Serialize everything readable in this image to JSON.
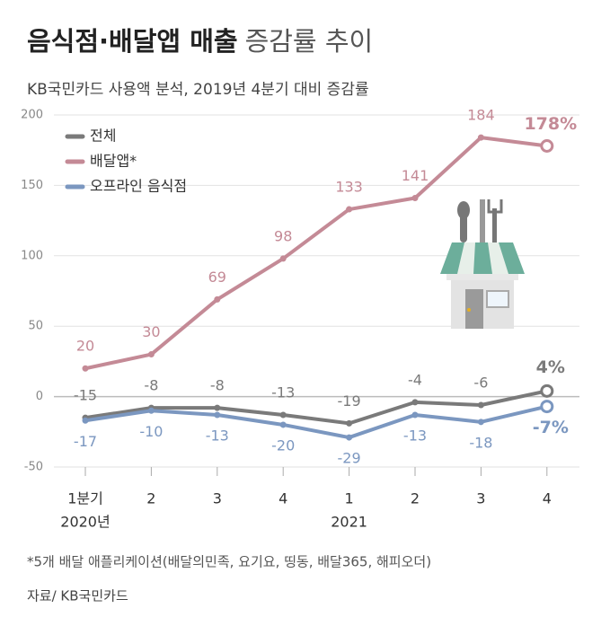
{
  "chart_data": {
    "type": "line",
    "title": {
      "bold": "음식점·배달앱 매출",
      "light": "증감률 추이"
    },
    "subtitle": "KB국민카드 사용액 분석, 2019년 4분기 대비 증감률",
    "categories": [
      "1분기",
      "2",
      "3",
      "4",
      "1",
      "2",
      "3",
      "4"
    ],
    "year_labels": [
      "2020년",
      null,
      null,
      null,
      "2021",
      null,
      null,
      null
    ],
    "series": [
      {
        "name": "전체",
        "color": "#7a7a7a",
        "values": [
          -15,
          -8,
          -8,
          -13,
          -19,
          -4,
          -6,
          4
        ],
        "value_labels": [
          "-15",
          "-8",
          "-8",
          "-13",
          "-19",
          "-4",
          "-6",
          "4%"
        ]
      },
      {
        "name": "배달앱*",
        "color": "#c48a96",
        "values": [
          20,
          30,
          69,
          98,
          133,
          141,
          184,
          178
        ],
        "value_labels": [
          "20",
          "30",
          "69",
          "98",
          "133",
          "141",
          "184",
          "178%"
        ]
      },
      {
        "name": "오프라인 음식점",
        "color": "#7b97c0",
        "values": [
          -17,
          -10,
          -13,
          -20,
          -29,
          -13,
          -18,
          -7
        ],
        "value_labels": [
          "-17",
          "-10",
          "-13",
          "-20",
          "-29",
          "-13",
          "-18",
          "-7%"
        ]
      }
    ],
    "ylim": [
      -50,
      200
    ],
    "yticks": [
      -50,
      0,
      50,
      100,
      150,
      200
    ],
    "grid": true,
    "legend": "upper left",
    "footnote": "*5개 배달 애플리케이션(배달의민족, 요기요, 띵동, 배달365, 해피오더)",
    "source": "자료/ KB국민카드"
  }
}
